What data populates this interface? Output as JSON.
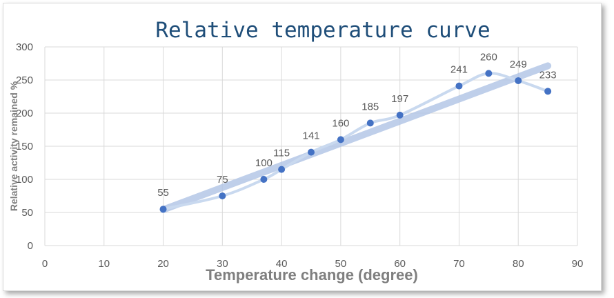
{
  "chart_data": {
    "type": "scatter",
    "title": "Relative temperature curve",
    "xlabel": "Temperature change (degree)",
    "ylabel": "Relative activity remained %",
    "xlim": [
      0,
      90
    ],
    "ylim": [
      0,
      300
    ],
    "x_ticks": [
      "0",
      "10",
      "20",
      "30",
      "40",
      "50",
      "60",
      "70",
      "80",
      "90"
    ],
    "y_ticks": [
      "0",
      "50",
      "100",
      "150",
      "200",
      "250",
      "300"
    ],
    "grid": true,
    "smoothed_line": true,
    "trendline": "linear",
    "series": [
      {
        "x": [
          20,
          30,
          37,
          40,
          45,
          50,
          55,
          60,
          70,
          75,
          80,
          85
        ],
        "y": [
          55,
          75,
          100,
          115,
          141,
          160,
          185,
          197,
          241,
          260,
          249,
          233
        ],
        "labels": [
          "55",
          "75",
          "100",
          "115",
          "141",
          "160",
          "185",
          "197",
          "241",
          "260",
          "249",
          "233"
        ]
      }
    ],
    "colors": {
      "marker": "#4472c4",
      "line": "#c9d9ef",
      "trendline": "#b4c7e7",
      "grid": "#d9d9d9",
      "title": "#1f4e79"
    }
  }
}
